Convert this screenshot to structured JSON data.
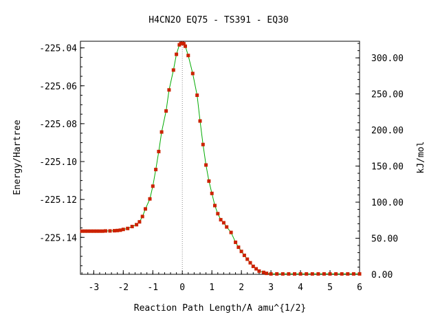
{
  "chart_data": {
    "type": "line",
    "title": "H4CN2O   EQ75 - TS391 - EQ30",
    "xlabel": "Reaction Path Length/A amu^{1/2}",
    "ylabel": "Energy/Hartree",
    "y2label": "kJ/mol",
    "xlim": [
      -3.45,
      6.0
    ],
    "ylim": [
      -225.1595,
      -225.0365
    ],
    "y2lim": [
      0.0,
      323.0
    ],
    "grid": false,
    "x_ticks": [
      -3,
      -2,
      -1,
      0,
      1,
      2,
      3,
      4,
      5,
      6
    ],
    "x_tick_labels": [
      "-3",
      "-2",
      "-1",
      "0",
      "1",
      "2",
      "3",
      "4",
      "5",
      "6"
    ],
    "y_ticks": [
      -225.04,
      -225.06,
      -225.08,
      -225.1,
      -225.12,
      -225.14
    ],
    "y_tick_labels": [
      "-225.04",
      "-225.06",
      "-225.08",
      "-225.10",
      "-225.12",
      "-225.14"
    ],
    "y2_ticks": [
      300,
      250,
      200,
      150,
      100,
      50,
      0
    ],
    "y2_tick_labels": [
      "300.00",
      "250.00",
      "200.00",
      "150.00",
      "100.00",
      "50.00",
      "0.00"
    ],
    "ts_marker_x": 0.0,
    "series": [
      {
        "color": "#cc2200",
        "line_color": "#00aa00",
        "x": [
          -3.4,
          -3.3,
          -3.2,
          -3.1,
          -3.0,
          -2.9,
          -2.8,
          -2.7,
          -2.6,
          -2.45,
          -2.3,
          -2.2,
          -2.1,
          -2.0,
          -1.85,
          -1.7,
          -1.55,
          -1.45,
          -1.35,
          -1.25,
          -1.1,
          -1.0,
          -0.9,
          -0.8,
          -0.7,
          -0.55,
          -0.45,
          -0.3,
          -0.2,
          -0.1,
          -0.05,
          0.0,
          0.05,
          0.1,
          0.2,
          0.35,
          0.5,
          0.6,
          0.7,
          0.8,
          0.9,
          1.0,
          1.1,
          1.2,
          1.3,
          1.4,
          1.5,
          1.65,
          1.8,
          1.9,
          2.0,
          2.1,
          2.2,
          2.3,
          2.4,
          2.5,
          2.6,
          2.75,
          2.85,
          3.0,
          3.2,
          3.4,
          3.6,
          3.8,
          4.0,
          4.2,
          4.4,
          4.6,
          4.8,
          5.0,
          5.2,
          5.4,
          5.6,
          5.8,
          6.0
        ],
        "y": [
          -225.1367,
          -225.1367,
          -225.1367,
          -225.1367,
          -225.1367,
          -225.1367,
          -225.1367,
          -225.1367,
          -225.1366,
          -225.1366,
          -225.1365,
          -225.1364,
          -225.1362,
          -225.1358,
          -225.1353,
          -225.1343,
          -225.1333,
          -225.1318,
          -225.129,
          -225.125,
          -225.1197,
          -225.113,
          -225.1042,
          -225.0947,
          -225.0844,
          -225.0733,
          -225.0622,
          -225.0517,
          -225.0434,
          -225.0384,
          -225.0377,
          -225.0376,
          -225.0378,
          -225.0391,
          -225.044,
          -225.0535,
          -225.065,
          -225.0786,
          -225.091,
          -225.1018,
          -225.1103,
          -225.1168,
          -225.1232,
          -225.1275,
          -225.1307,
          -225.1323,
          -225.1345,
          -225.1374,
          -225.1426,
          -225.1452,
          -225.1474,
          -225.1495,
          -225.1515,
          -225.1534,
          -225.1553,
          -225.1566,
          -225.1578,
          -225.1585,
          -225.159,
          -225.1593,
          -225.1593,
          -225.1593,
          -225.1593,
          -225.1593,
          -225.1593,
          -225.1593,
          -225.1593,
          -225.1593,
          -225.1593,
          -225.1593,
          -225.1593,
          -225.1593,
          -225.1593,
          -225.1593,
          -225.1593
        ]
      }
    ]
  }
}
